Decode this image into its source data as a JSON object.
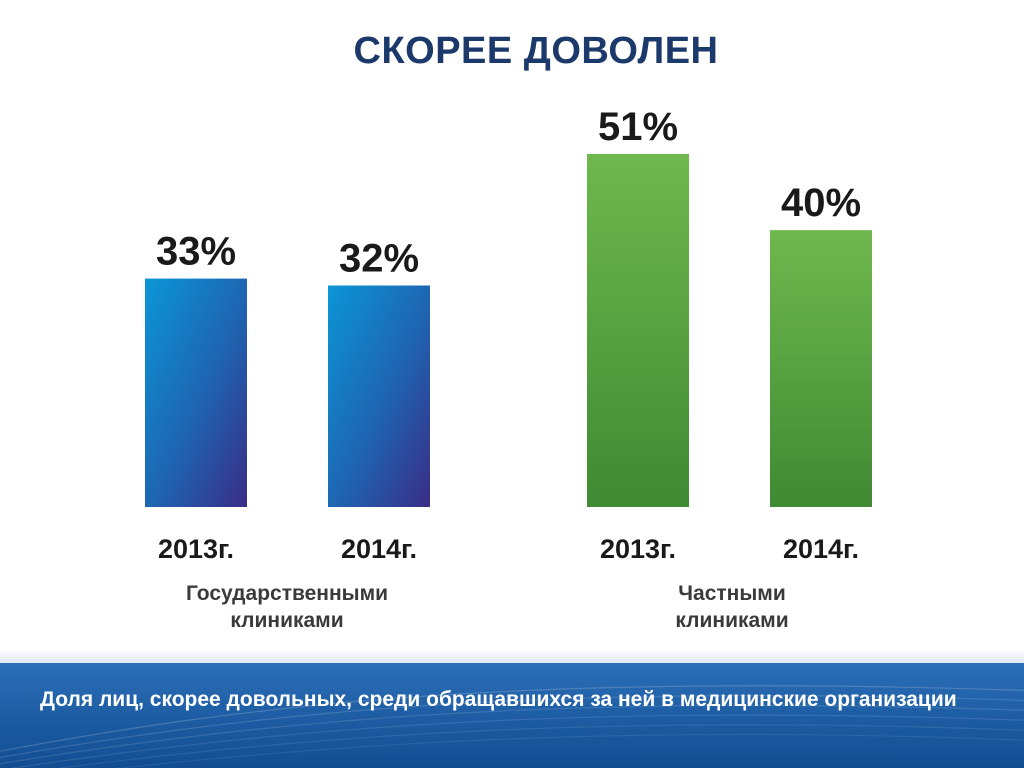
{
  "slide": {
    "title": "СКОРЕЕ ДОВОЛЕН",
    "footer_text": "Доля лиц, скорее довольных, среди обращавшихся за ней в медицинские организации"
  },
  "colors": {
    "blue_top": "#0b96d6",
    "blue_bottom": "#3a2d86",
    "green_top": "#6fb84e",
    "green_bottom": "#3f8a33",
    "title": "#1b3a6b",
    "footer": "#1f5fa6"
  },
  "chart_data": {
    "type": "bar",
    "title": "СКОРЕЕ ДОВОЛЕН",
    "unit": "%",
    "groups": [
      {
        "label_lines": [
          "Государственными",
          "клиниками"
        ],
        "color": "blue",
        "bars": [
          {
            "category": "2013г.",
            "value": 33,
            "label": "33%"
          },
          {
            "category": "2014г.",
            "value": 32,
            "label": "32%"
          }
        ]
      },
      {
        "label_lines": [
          "Частными",
          "клиниками"
        ],
        "color": "green",
        "bars": [
          {
            "category": "2013г.",
            "value": 51,
            "label": "51%"
          },
          {
            "category": "2014г.",
            "value": 40,
            "label": "40%"
          }
        ]
      }
    ],
    "ylim": [
      0,
      51
    ],
    "grid": false,
    "legend": "none"
  }
}
